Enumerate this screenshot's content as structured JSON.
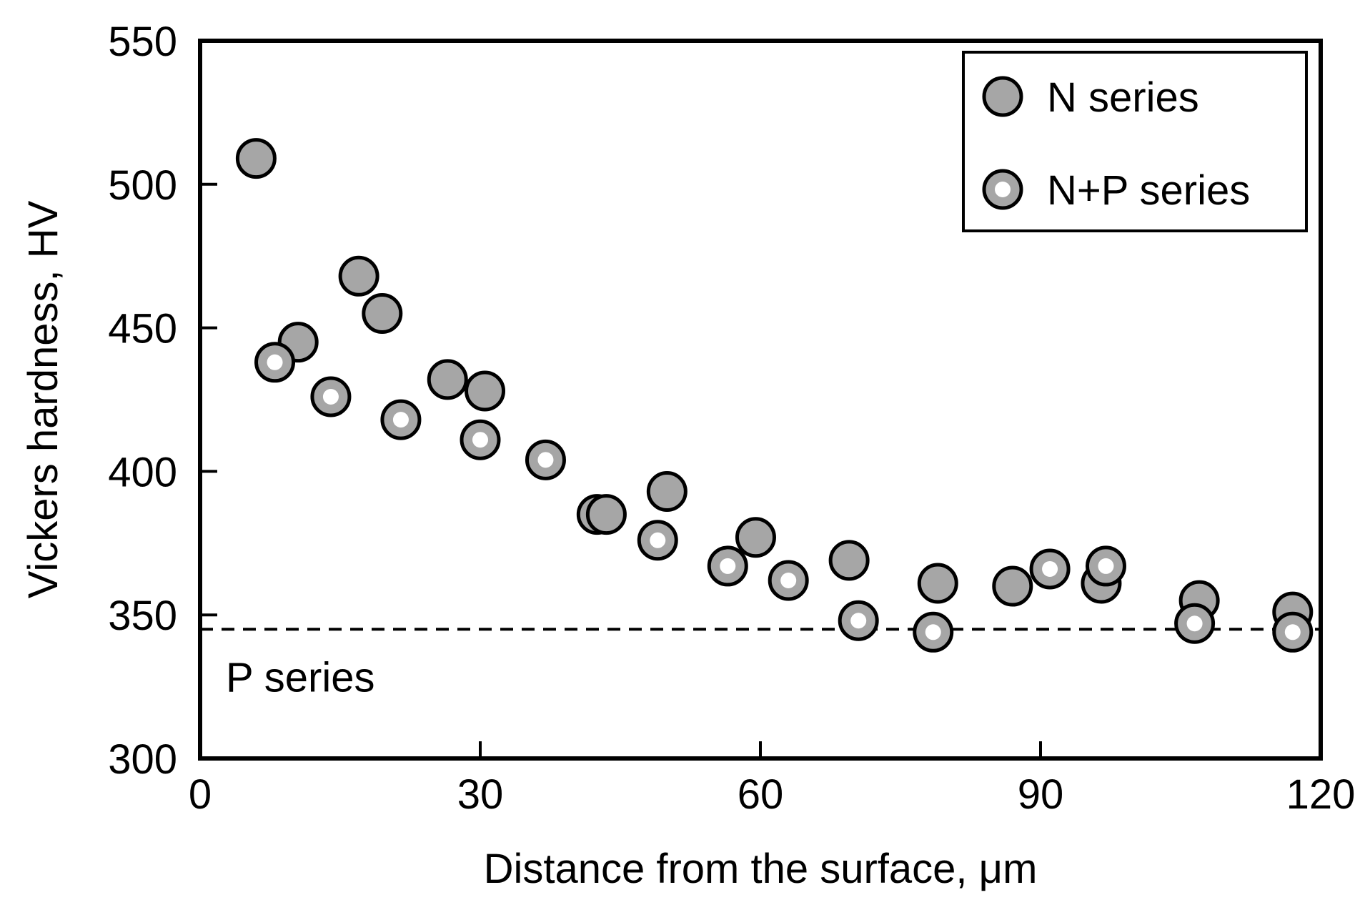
{
  "chart_data": {
    "type": "scatter",
    "title": "",
    "xlabel": "Distance from the surface, μm",
    "ylabel": "Vickers hardness, HV",
    "xlim": [
      0,
      120
    ],
    "ylim": [
      300,
      550
    ],
    "xticks": [
      0,
      30,
      60,
      90,
      120
    ],
    "yticks": [
      300,
      350,
      400,
      450,
      500,
      550
    ],
    "grid": false,
    "legend_position": "top-right",
    "series": [
      {
        "name": "N series",
        "marker": "filled-circle",
        "fill": "#a6a6a6",
        "points": [
          [
            6,
            509
          ],
          [
            10.5,
            445
          ],
          [
            17,
            468
          ],
          [
            19.5,
            455
          ],
          [
            26.5,
            432
          ],
          [
            30.5,
            428
          ],
          [
            42.5,
            385
          ],
          [
            43.5,
            385
          ],
          [
            50,
            393
          ],
          [
            59.5,
            377
          ],
          [
            69.5,
            369
          ],
          [
            79,
            361
          ],
          [
            87,
            360
          ],
          [
            96.5,
            361
          ],
          [
            107,
            355
          ],
          [
            117,
            351
          ]
        ]
      },
      {
        "name": "N+P series",
        "marker": "ring-circle",
        "fill": "#a6a6a6",
        "center": "#ffffff",
        "points": [
          [
            8,
            438
          ],
          [
            14,
            426
          ],
          [
            21.5,
            418
          ],
          [
            30,
            411
          ],
          [
            37,
            404
          ],
          [
            49,
            376
          ],
          [
            56.5,
            367
          ],
          [
            63,
            362
          ],
          [
            70.5,
            348
          ],
          [
            78.5,
            344
          ],
          [
            91,
            366
          ],
          [
            97,
            367
          ],
          [
            106.5,
            347
          ],
          [
            117,
            344
          ]
        ]
      }
    ],
    "reference_lines": [
      {
        "label": "P series",
        "y": 345,
        "style": "dashed"
      }
    ]
  }
}
